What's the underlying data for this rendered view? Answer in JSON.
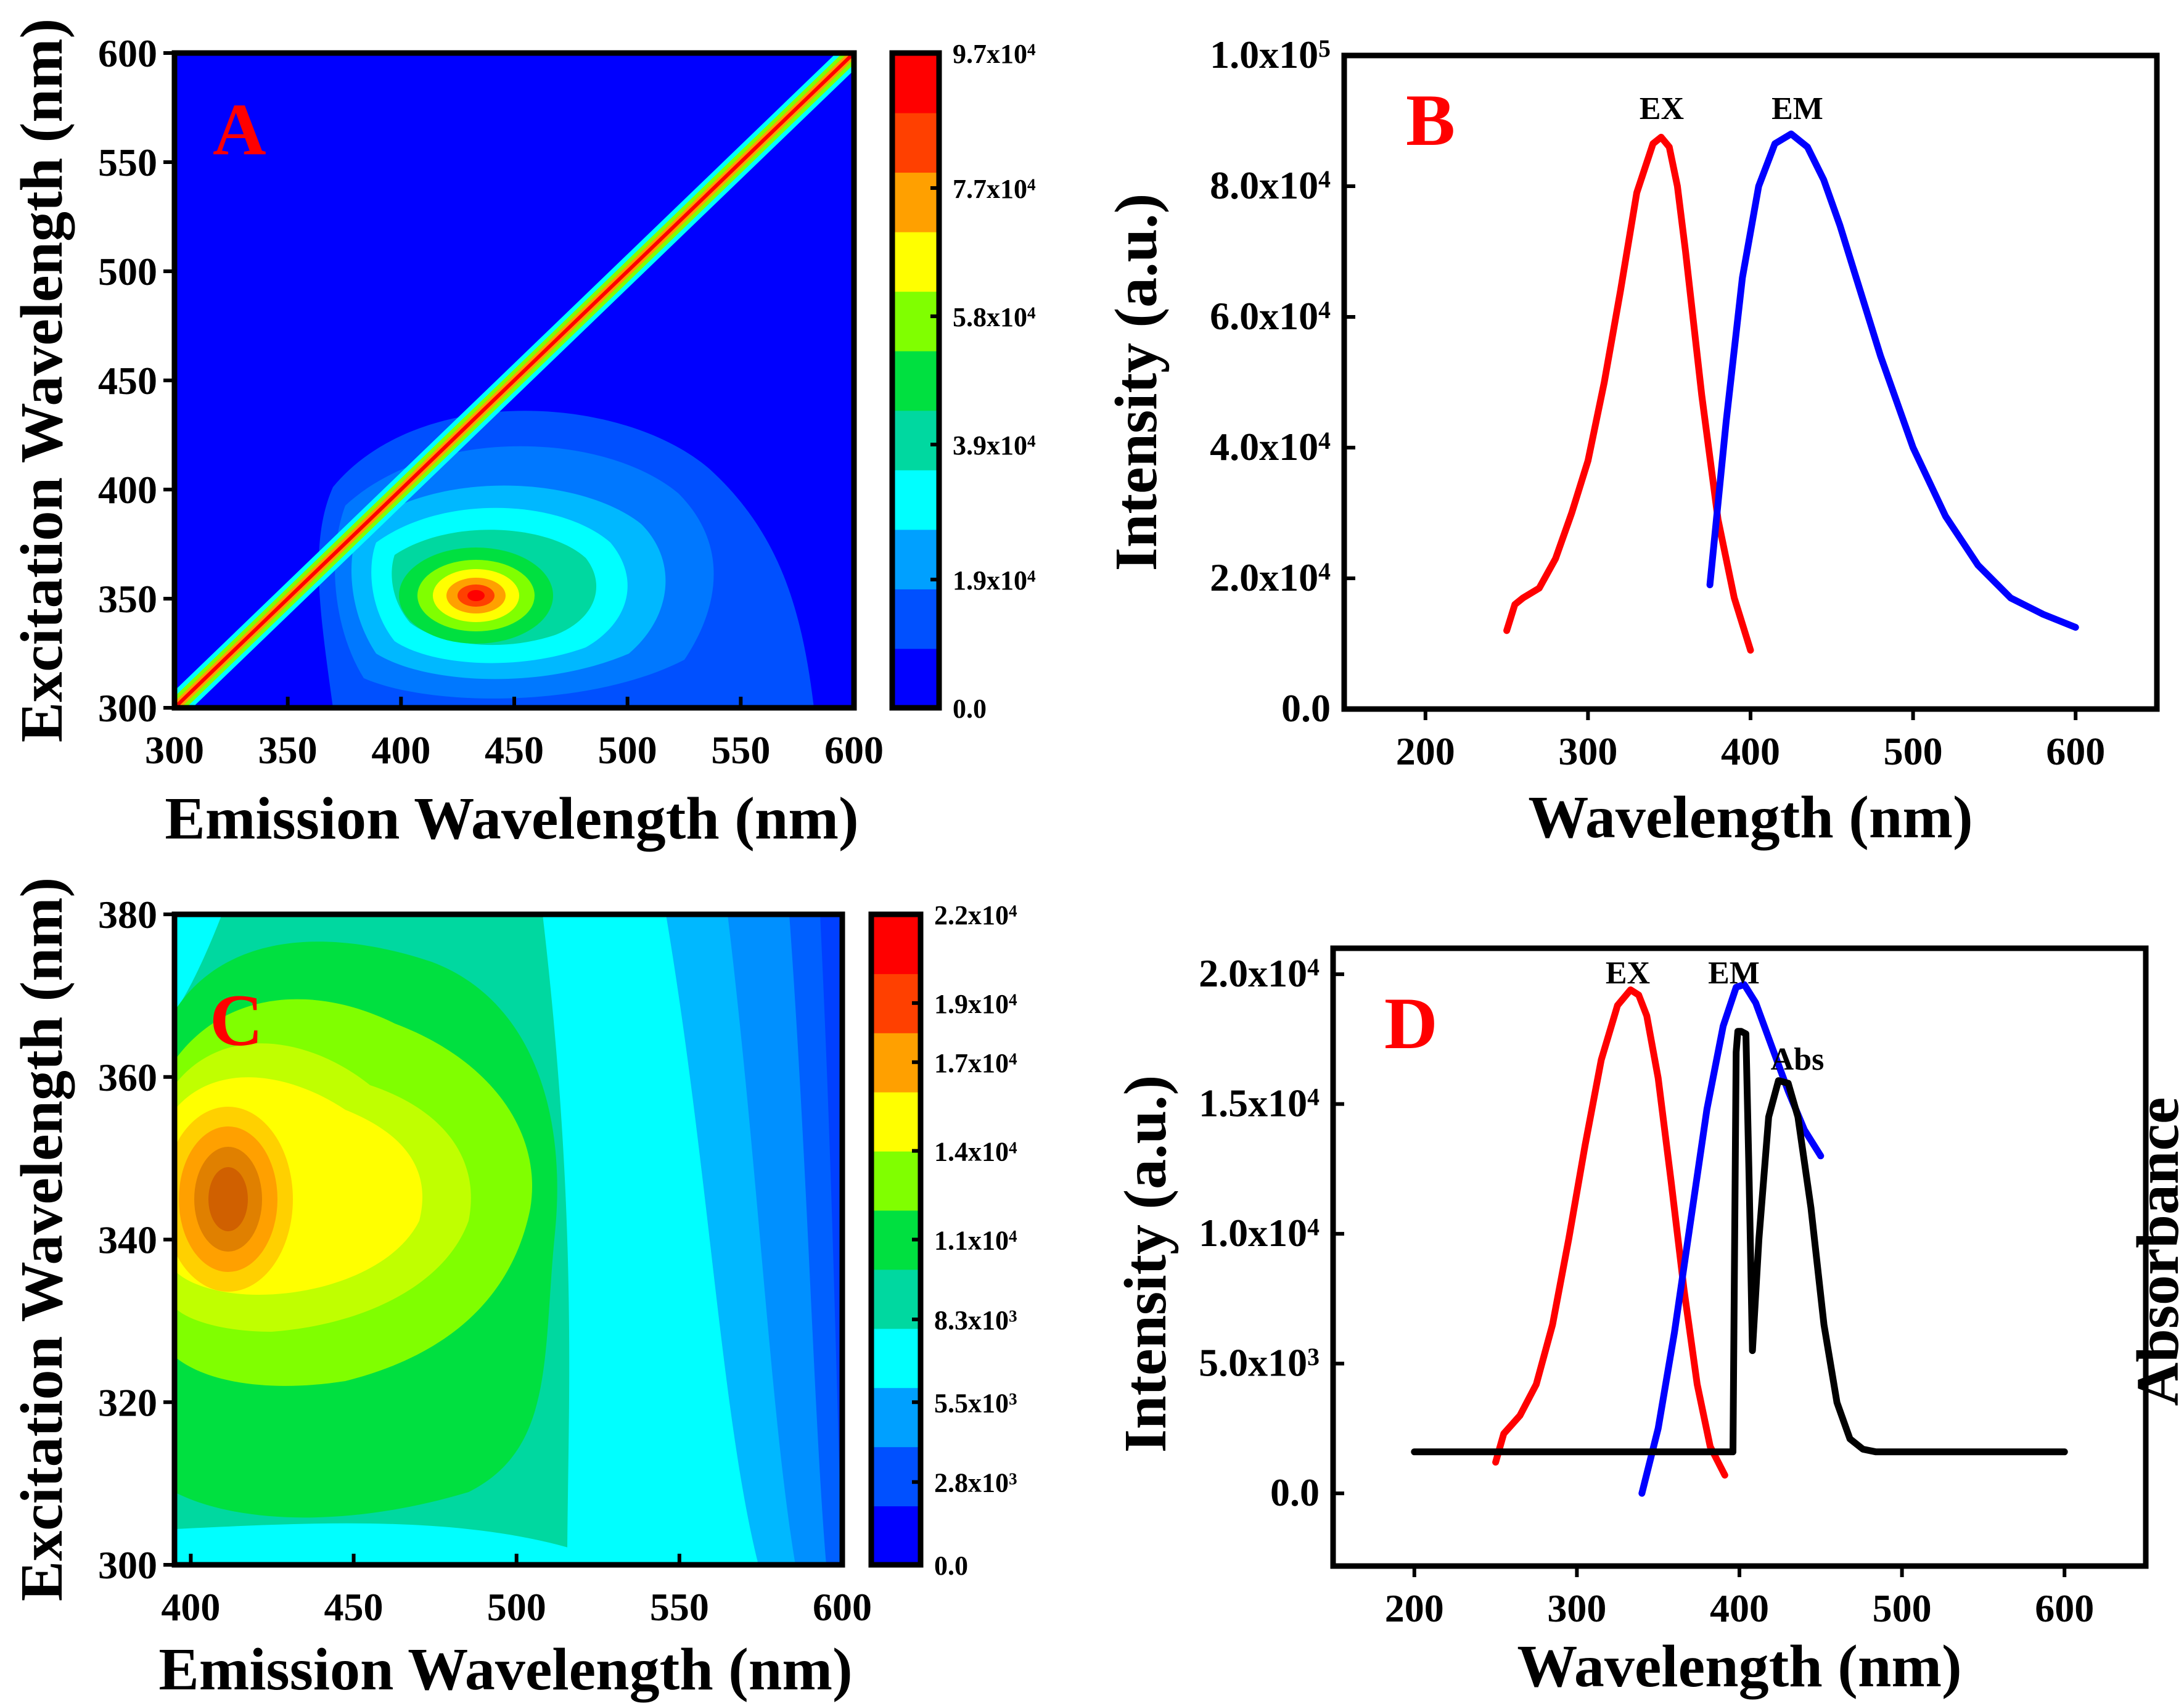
{
  "palette": {
    "jet": [
      "#0000ff",
      "#0050ff",
      "#00a0ff",
      "#00ffff",
      "#00d8a0",
      "#00e040",
      "#80ff00",
      "#ffff00",
      "#ffa000",
      "#ff4000",
      "#ff0000"
    ],
    "ex": "#ff0000",
    "em": "#0000ff",
    "abs": "#000000"
  },
  "chart_data": [
    {
      "panel": "A",
      "type": "heatmap",
      "panel_label": "A",
      "xlabel": "Emission Wavelength (nm)",
      "ylabel": "Excitation Wavelength (nm)",
      "xlim": [
        300,
        600
      ],
      "ylim": [
        300,
        600
      ],
      "xticks": [
        300,
        350,
        400,
        450,
        500,
        550,
        600
      ],
      "yticks": [
        300,
        350,
        400,
        450,
        500,
        550,
        600
      ],
      "colorbar": {
        "range": [
          0,
          97000
        ],
        "ticks": [
          0,
          19000,
          39000,
          58000,
          77000,
          97000
        ],
        "tick_labels": [
          {
            "m": "0.0",
            "e": ""
          },
          {
            "m": "1.9x10",
            "e": "4"
          },
          {
            "m": "3.9x10",
            "e": "4"
          },
          {
            "m": "5.8x10",
            "e": "4"
          },
          {
            "m": "7.7x10",
            "e": "4"
          },
          {
            "m": "9.7x10",
            "e": "4"
          }
        ]
      },
      "features": [
        {
          "kind": "peak",
          "em_nm": 428,
          "ex_nm": 350,
          "intensity": 85000
        },
        {
          "kind": "rayleigh_scatter_line",
          "from_nm": 300,
          "to_nm": 600,
          "intensity": 97000
        }
      ]
    },
    {
      "panel": "B",
      "type": "line",
      "panel_label": "B",
      "xlabel": "Wavelength (nm)",
      "ylabel": "Intensity (a.u.)",
      "xlim": [
        150,
        650
      ],
      "ylim": [
        0,
        100000
      ],
      "xticks": [
        200,
        300,
        400,
        500,
        600
      ],
      "yticks": [
        0,
        20000,
        40000,
        60000,
        80000,
        100000
      ],
      "ytick_labels": [
        {
          "m": "0.0",
          "e": ""
        },
        {
          "m": "2.0x10",
          "e": "4"
        },
        {
          "m": "4.0x10",
          "e": "4"
        },
        {
          "m": "6.0x10",
          "e": "4"
        },
        {
          "m": "8.0x10",
          "e": "4"
        },
        {
          "m": "1.0x10",
          "e": "5"
        }
      ],
      "series": [
        {
          "name": "EX",
          "color": "#ff0000",
          "x": [
            250,
            255,
            260,
            270,
            280,
            290,
            300,
            310,
            320,
            330,
            340,
            345,
            350,
            355,
            360,
            370,
            380,
            390,
            400
          ],
          "y": [
            12000,
            16000,
            17000,
            18500,
            23000,
            30000,
            38000,
            50000,
            64000,
            79000,
            86500,
            87500,
            86000,
            80000,
            70000,
            48000,
            29000,
            17000,
            9000
          ]
        },
        {
          "name": "EM",
          "color": "#0000ff",
          "x": [
            375,
            385,
            395,
            405,
            415,
            425,
            435,
            445,
            455,
            465,
            480,
            500,
            520,
            540,
            560,
            580,
            600
          ],
          "y": [
            19000,
            44000,
            66000,
            80000,
            86500,
            88000,
            86000,
            81000,
            74000,
            66000,
            54000,
            40000,
            29500,
            22000,
            17000,
            14500,
            12500
          ]
        }
      ],
      "annotations": [
        "EX",
        "EM"
      ]
    },
    {
      "panel": "C",
      "type": "heatmap",
      "panel_label": "C",
      "xlabel": "Emission Wavelength (nm)",
      "ylabel": "Excitation Wavelength (nm)",
      "xlim": [
        395,
        600
      ],
      "ylim": [
        300,
        380
      ],
      "xticks": [
        400,
        450,
        500,
        550,
        600
      ],
      "yticks": [
        300,
        320,
        340,
        360,
        380
      ],
      "colorbar": {
        "range": [
          0,
          22000
        ],
        "ticks": [
          0,
          2800,
          5500,
          8300,
          11000,
          14000,
          17000,
          19000,
          22000
        ],
        "tick_labels": [
          {
            "m": "0.0",
            "e": ""
          },
          {
            "m": "2.8x10",
            "e": "3"
          },
          {
            "m": "5.5x10",
            "e": "3"
          },
          {
            "m": "8.3x10",
            "e": "3"
          },
          {
            "m": "1.1x10",
            "e": "4"
          },
          {
            "m": "1.4x10",
            "e": "4"
          },
          {
            "m": "1.7x10",
            "e": "4"
          },
          {
            "m": "1.9x10",
            "e": "4"
          },
          {
            "m": "2.2x10",
            "e": "4"
          }
        ]
      },
      "features": [
        {
          "kind": "peak",
          "em_nm": 413,
          "ex_nm": 341,
          "intensity": 20000
        }
      ]
    },
    {
      "panel": "D",
      "type": "line",
      "panel_label": "D",
      "xlabel": "Wavelength (nm)",
      "ylabel": "Intensity (a.u.)",
      "ylabel_right": "Absorbance",
      "xlim": [
        150,
        650
      ],
      "ylim": [
        -2800,
        21000
      ],
      "xticks": [
        200,
        300,
        400,
        500,
        600
      ],
      "yticks": [
        0,
        5000,
        10000,
        15000,
        20000
      ],
      "ytick_labels": [
        {
          "m": "0.0",
          "e": ""
        },
        {
          "m": "5.0x10",
          "e": "3"
        },
        {
          "m": "1.0x10",
          "e": "4"
        },
        {
          "m": "1.5x10",
          "e": "4"
        },
        {
          "m": "2.0x10",
          "e": "4"
        }
      ],
      "series": [
        {
          "name": "EX",
          "color": "#ff0000",
          "x": [
            250,
            255,
            265,
            275,
            285,
            295,
            305,
            315,
            325,
            333,
            338,
            343,
            350,
            358,
            366,
            374,
            382,
            391
          ],
          "y": [
            1200,
            2300,
            3000,
            4200,
            6500,
            9800,
            13400,
            16700,
            18800,
            19400,
            19200,
            18400,
            16000,
            12000,
            7800,
            4200,
            1800,
            700
          ]
        },
        {
          "name": "EM",
          "color": "#0000ff",
          "x": [
            340,
            350,
            360,
            370,
            380,
            390,
            398,
            403,
            410,
            420,
            430,
            440,
            450
          ],
          "y": [
            0,
            2500,
            6200,
            10500,
            14800,
            18000,
            19500,
            19600,
            18900,
            17200,
            15500,
            14000,
            13000
          ]
        },
        {
          "name": "Abs",
          "color": "#000000",
          "x": [
            200,
            396,
            398,
            399,
            401,
            404,
            406,
            408,
            412,
            418,
            424,
            430,
            436,
            444,
            452,
            460,
            468,
            476,
            484,
            490,
            600
          ],
          "y": [
            1600,
            1600,
            17000,
            17800,
            17800,
            17700,
            12000,
            5500,
            9800,
            14500,
            15900,
            15800,
            14500,
            11000,
            6500,
            3500,
            2100,
            1700,
            1600,
            1600,
            1600
          ]
        }
      ],
      "annotations": [
        "EX",
        "EM",
        "Abs"
      ]
    }
  ]
}
